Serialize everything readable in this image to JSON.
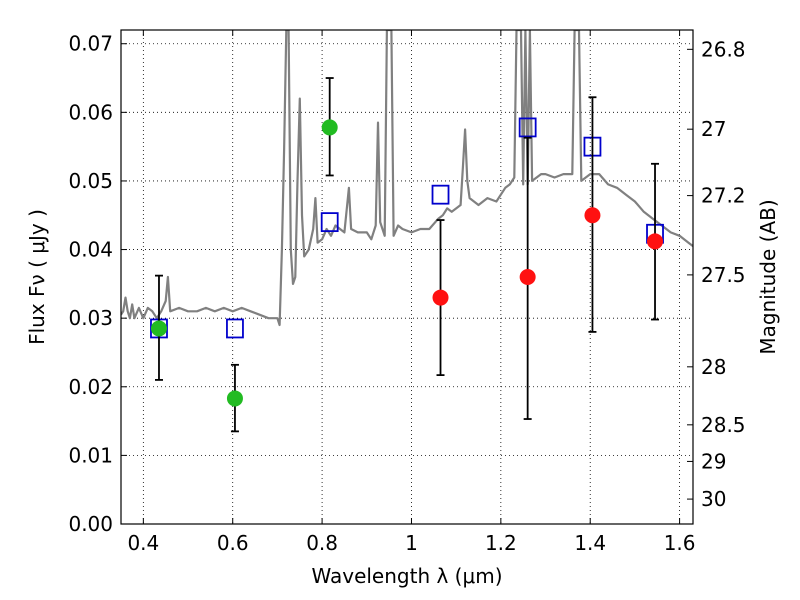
{
  "chart_data": {
    "type": "scatter",
    "xlabel": "Wavelength  λ (μm)",
    "ylabel": "Flux  Fν  ( μJy )",
    "ylabel_right": "Magnitude (AB)",
    "xlim": [
      0.35,
      1.63
    ],
    "ylim": [
      0.0,
      0.072
    ],
    "grid": true,
    "x_ticks": [
      {
        "value": 0.4,
        "label": "0.4"
      },
      {
        "value": 0.6,
        "label": "0.6"
      },
      {
        "value": 0.8,
        "label": "0.8"
      },
      {
        "value": 1.0,
        "label": "1"
      },
      {
        "value": 1.2,
        "label": "1.2"
      },
      {
        "value": 1.4,
        "label": "1.4"
      },
      {
        "value": 1.6,
        "label": "1.6"
      }
    ],
    "y_ticks": [
      {
        "value": 0.0,
        "label": "0.00"
      },
      {
        "value": 0.01,
        "label": "0.01"
      },
      {
        "value": 0.02,
        "label": "0.02"
      },
      {
        "value": 0.03,
        "label": "0.03"
      },
      {
        "value": 0.04,
        "label": "0.04"
      },
      {
        "value": 0.05,
        "label": "0.05"
      },
      {
        "value": 0.06,
        "label": "0.06"
      },
      {
        "value": 0.07,
        "label": "0.07"
      }
    ],
    "right_ticks": [
      {
        "mag": 26.8,
        "label": "26.8"
      },
      {
        "mag": 27.0,
        "label": "27"
      },
      {
        "mag": 27.2,
        "label": "27.2"
      },
      {
        "mag": 27.5,
        "label": "27.5"
      },
      {
        "mag": 28.0,
        "label": "28"
      },
      {
        "mag": 28.5,
        "label": "28.5"
      },
      {
        "mag": 29.0,
        "label": "29"
      },
      {
        "mag": 30.0,
        "label": "30"
      }
    ],
    "series": [
      {
        "kind": "line",
        "color": "#808080",
        "points": [
          [
            0.35,
            0.0305
          ],
          [
            0.355,
            0.031
          ],
          [
            0.36,
            0.033
          ],
          [
            0.365,
            0.031
          ],
          [
            0.37,
            0.03
          ],
          [
            0.375,
            0.032
          ],
          [
            0.38,
            0.03
          ],
          [
            0.39,
            0.0315
          ],
          [
            0.4,
            0.03
          ],
          [
            0.41,
            0.0315
          ],
          [
            0.42,
            0.031
          ],
          [
            0.43,
            0.03
          ],
          [
            0.44,
            0.031
          ],
          [
            0.45,
            0.0325
          ],
          [
            0.455,
            0.036
          ],
          [
            0.46,
            0.031
          ],
          [
            0.48,
            0.0315
          ],
          [
            0.5,
            0.031
          ],
          [
            0.52,
            0.031
          ],
          [
            0.54,
            0.0315
          ],
          [
            0.56,
            0.031
          ],
          [
            0.58,
            0.0315
          ],
          [
            0.6,
            0.031
          ],
          [
            0.62,
            0.0315
          ],
          [
            0.64,
            0.031
          ],
          [
            0.66,
            0.0305
          ],
          [
            0.68,
            0.03
          ],
          [
            0.7,
            0.03
          ],
          [
            0.705,
            0.029
          ],
          [
            0.71,
            0.04
          ],
          [
            0.715,
            0.0545
          ],
          [
            0.72,
            0.072
          ],
          [
            0.725,
            0.072
          ],
          [
            0.73,
            0.04
          ],
          [
            0.735,
            0.035
          ],
          [
            0.74,
            0.036
          ],
          [
            0.745,
            0.05
          ],
          [
            0.75,
            0.062
          ],
          [
            0.755,
            0.045
          ],
          [
            0.76,
            0.039
          ],
          [
            0.77,
            0.04
          ],
          [
            0.78,
            0.043
          ],
          [
            0.785,
            0.0475
          ],
          [
            0.79,
            0.041
          ],
          [
            0.8,
            0.0415
          ],
          [
            0.81,
            0.043
          ],
          [
            0.82,
            0.042
          ],
          [
            0.83,
            0.0435
          ],
          [
            0.84,
            0.043
          ],
          [
            0.85,
            0.0425
          ],
          [
            0.86,
            0.049
          ],
          [
            0.865,
            0.043
          ],
          [
            0.88,
            0.0425
          ],
          [
            0.9,
            0.0425
          ],
          [
            0.91,
            0.0415
          ],
          [
            0.92,
            0.0435
          ],
          [
            0.925,
            0.0585
          ],
          [
            0.93,
            0.044
          ],
          [
            0.94,
            0.042
          ],
          [
            0.945,
            0.072
          ],
          [
            0.955,
            0.072
          ],
          [
            0.96,
            0.042
          ],
          [
            0.97,
            0.0435
          ],
          [
            0.98,
            0.043
          ],
          [
            1.0,
            0.0425
          ],
          [
            1.02,
            0.043
          ],
          [
            1.04,
            0.043
          ],
          [
            1.06,
            0.0445
          ],
          [
            1.07,
            0.045
          ],
          [
            1.08,
            0.046
          ],
          [
            1.09,
            0.0455
          ],
          [
            1.1,
            0.046
          ],
          [
            1.11,
            0.0465
          ],
          [
            1.115,
            0.052
          ],
          [
            1.12,
            0.0575
          ],
          [
            1.125,
            0.05
          ],
          [
            1.13,
            0.0475
          ],
          [
            1.15,
            0.0465
          ],
          [
            1.17,
            0.0475
          ],
          [
            1.19,
            0.047
          ],
          [
            1.2,
            0.048
          ],
          [
            1.21,
            0.049
          ],
          [
            1.22,
            0.0495
          ],
          [
            1.23,
            0.0505
          ],
          [
            1.235,
            0.072
          ],
          [
            1.245,
            0.072
          ],
          [
            1.25,
            0.0495
          ],
          [
            1.255,
            0.072
          ],
          [
            1.26,
            0.0495
          ],
          [
            1.265,
            0.072
          ],
          [
            1.27,
            0.05
          ],
          [
            1.28,
            0.0505
          ],
          [
            1.29,
            0.051
          ],
          [
            1.3,
            0.051
          ],
          [
            1.32,
            0.0505
          ],
          [
            1.34,
            0.051
          ],
          [
            1.36,
            0.051
          ],
          [
            1.365,
            0.072
          ],
          [
            1.375,
            0.072
          ],
          [
            1.38,
            0.05
          ],
          [
            1.4,
            0.051
          ],
          [
            1.42,
            0.051
          ],
          [
            1.44,
            0.0495
          ],
          [
            1.46,
            0.049
          ],
          [
            1.48,
            0.048
          ],
          [
            1.5,
            0.047
          ],
          [
            1.52,
            0.0455
          ],
          [
            1.54,
            0.0445
          ],
          [
            1.56,
            0.0435
          ],
          [
            1.58,
            0.0425
          ],
          [
            1.6,
            0.042
          ],
          [
            1.62,
            0.041
          ],
          [
            1.63,
            0.0405
          ]
        ]
      },
      {
        "kind": "square",
        "color": "#0000cc",
        "points": [
          [
            0.435,
            0.0285
          ],
          [
            0.605,
            0.0285
          ],
          [
            0.817,
            0.044
          ],
          [
            1.065,
            0.048
          ],
          [
            1.26,
            0.0578
          ],
          [
            1.405,
            0.055
          ],
          [
            1.545,
            0.0423
          ]
        ]
      },
      {
        "kind": "circle",
        "color": "#22bb22",
        "points": [
          {
            "x": 0.435,
            "y": 0.0285,
            "err_lo": 0.021,
            "err_hi": 0.0362
          },
          {
            "x": 0.605,
            "y": 0.0183,
            "err_lo": 0.0135,
            "err_hi": 0.0232
          },
          {
            "x": 0.817,
            "y": 0.0578,
            "err_lo": 0.0508,
            "err_hi": 0.065
          }
        ]
      },
      {
        "kind": "circle",
        "color": "#ff1111",
        "points": [
          {
            "x": 1.065,
            "y": 0.033,
            "err_lo": 0.0217,
            "err_hi": 0.0443
          },
          {
            "x": 1.26,
            "y": 0.036,
            "err_lo": 0.0153,
            "err_hi": 0.0563
          },
          {
            "x": 1.405,
            "y": 0.045,
            "err_lo": 0.028,
            "err_hi": 0.0622
          },
          {
            "x": 1.545,
            "y": 0.0412,
            "err_lo": 0.0298,
            "err_hi": 0.0525
          }
        ]
      }
    ]
  }
}
